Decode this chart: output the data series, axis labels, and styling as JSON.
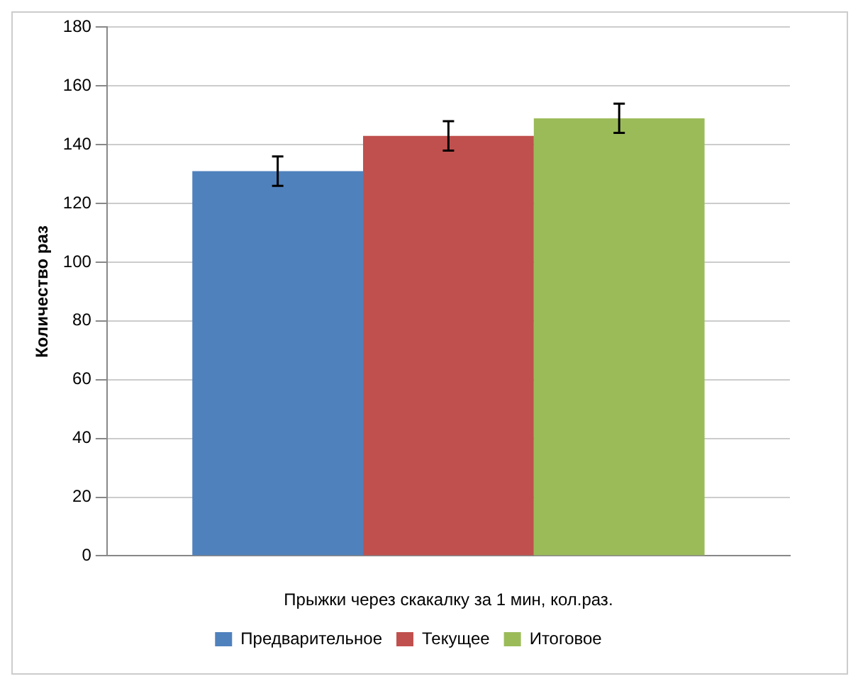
{
  "chart_data": {
    "type": "bar",
    "ylabel": "Количество раз",
    "xlabel": "Прыжки через скакалку за 1 мин, кол.раз.",
    "categories": [
      null
    ],
    "series": [
      {
        "name": "Предварительное",
        "color": "#4f81bd",
        "values": [
          131
        ],
        "errors": [
          5
        ]
      },
      {
        "name": "Текущее",
        "color": "#c0504d",
        "values": [
          143
        ],
        "errors": [
          5
        ]
      },
      {
        "name": "Итоговое",
        "color": "#9bbb59",
        "values": [
          149
        ],
        "errors": [
          5
        ]
      }
    ],
    "ylim": [
      0,
      180
    ],
    "yticks": [
      0,
      20,
      40,
      60,
      80,
      100,
      120,
      140,
      160,
      180
    ],
    "grid": "y",
    "legend": "bottom"
  }
}
